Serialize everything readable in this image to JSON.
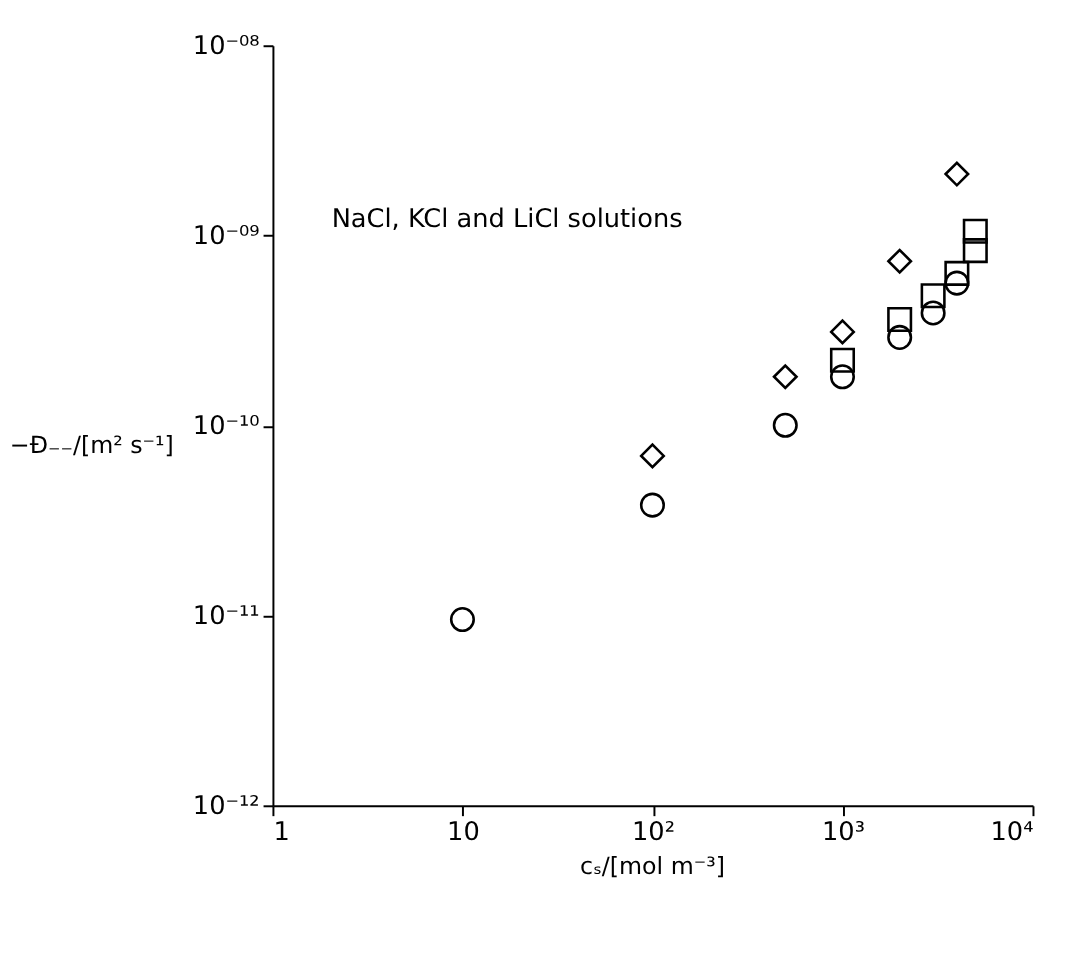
{
  "chart_data": {
    "type": "scatter",
    "xlabel": "cₛ/[mol m⁻³]",
    "ylabel": "−Đ₋₋/[m² s⁻¹]",
    "log": "xy",
    "grid": false,
    "annotations": [
      "NaCl, KCl and LiCl solutions"
    ],
    "xlim": [
      1,
      10000
    ],
    "ylim": [
      1e-12,
      1e-08
    ],
    "xticks": [
      1,
      10,
      {
        "value": 100,
        "label": "10²"
      },
      {
        "value": 1000,
        "label": "10³"
      },
      {
        "value": 10000,
        "label": "10⁴"
      }
    ],
    "yticks": [
      {
        "value": 1e-12,
        "label": "10⁻¹²"
      },
      {
        "value": 1e-11,
        "label": "10⁻¹¹"
      },
      {
        "value": 1e-10,
        "label": "10⁻¹⁰"
      },
      {
        "value": 1e-09,
        "label": "10⁻⁰⁹"
      },
      {
        "value": 1e-08,
        "label": "10⁻⁰⁸"
      }
    ],
    "series": [
      {
        "color": "#000000",
        "marker": "circle",
        "x": [
          10,
          100,
          500,
          1000,
          2000,
          3000,
          4000
        ],
        "values": [
          9.5e-12,
          3.8e-11,
          1e-10,
          1.8e-10,
          2.9e-10,
          3.9e-10,
          5.6e-10
        ]
      },
      {
        "color": "#000000",
        "marker": "diamond",
        "x": [
          100,
          500,
          1000,
          2000,
          4000
        ],
        "values": [
          6.9e-11,
          1.8e-10,
          3.1e-10,
          7.3e-10,
          2.1e-09
        ]
      },
      {
        "color": "#000000",
        "marker": "square",
        "x": [
          1000,
          2000,
          3000,
          4000,
          5000,
          5000
        ],
        "values": [
          2.2e-10,
          3.6e-10,
          4.8e-10,
          6.3e-10,
          8.3e-10,
          1.05e-09
        ]
      }
    ]
  }
}
